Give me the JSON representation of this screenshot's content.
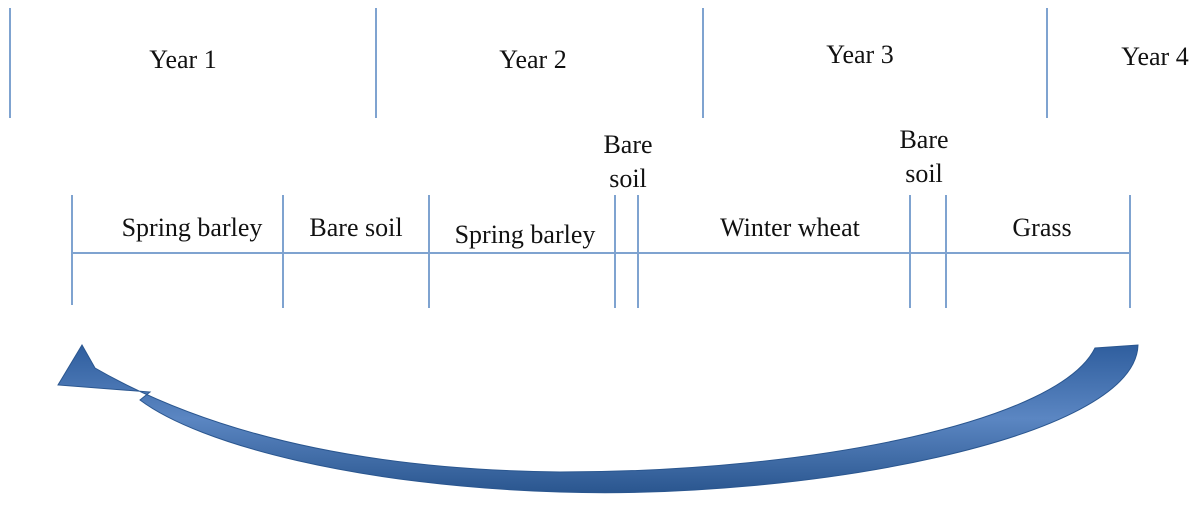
{
  "years": [
    "Year 1",
    "Year 2",
    "Year 3",
    "Year 4"
  ],
  "crops": [
    "Spring barley",
    "Bare soil",
    "Spring barley",
    "Bare soil",
    "Winter wheat",
    "Bare soil",
    "Grass"
  ]
}
